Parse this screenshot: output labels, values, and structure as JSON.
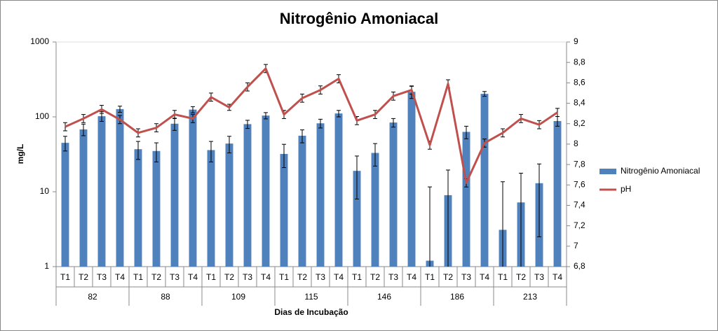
{
  "chart_data": {
    "type": "bar-line",
    "title": "Nitrogênio Amoniacal",
    "y_label": "mg/L",
    "x_label": "Dias de Incubação",
    "categories": [
      "T1",
      "T2",
      "T3",
      "T4",
      "T1",
      "T2",
      "T3",
      "T4",
      "T1",
      "T2",
      "T3",
      "T4",
      "T1",
      "T2",
      "T3",
      "T4",
      "T1",
      "T2",
      "T3",
      "T4",
      "T1",
      "T2",
      "T3",
      "T4",
      "T1",
      "T2",
      "T3",
      "T4"
    ],
    "groups": [
      "82",
      "88",
      "109",
      "115",
      "146",
      "186",
      "213"
    ],
    "log_scale": true,
    "ylim": [
      1,
      1000
    ],
    "yticks": [
      1,
      10,
      100,
      1000
    ],
    "y2lim": [
      6.8,
      9
    ],
    "y2ticks": [
      {
        "value": 6.8,
        "label": "6,8"
      },
      {
        "value": 7,
        "label": "7"
      },
      {
        "value": 7.2,
        "label": "7,2"
      },
      {
        "value": 7.4,
        "label": "7,4"
      },
      {
        "value": 7.6,
        "label": "7,6"
      },
      {
        "value": 7.8,
        "label": "7,8"
      },
      {
        "value": 8,
        "label": "8"
      },
      {
        "value": 8.2,
        "label": "8,2"
      },
      {
        "value": 8.4,
        "label": "8,4"
      },
      {
        "value": 8.6,
        "label": "8,6"
      },
      {
        "value": 8.8,
        "label": "8,8"
      },
      {
        "value": 9,
        "label": "9"
      }
    ],
    "grid": false,
    "legend": "right",
    "series": [
      {
        "name": "Nitrogênio Amoniacal",
        "type": "bar",
        "color": "#4f81bd",
        "values": [
          45,
          68,
          102,
          127,
          37,
          35,
          81,
          125,
          36,
          44,
          80,
          104,
          32,
          56,
          82,
          111,
          19,
          33,
          84,
          216,
          1.2,
          9,
          63,
          203,
          3.1,
          7.2,
          13,
          88
        ],
        "errors": [
          10,
          12,
          15,
          12,
          10,
          10,
          15,
          12,
          11,
          11,
          10,
          10,
          11,
          11,
          11,
          11,
          11,
          11,
          11,
          40,
          10.4,
          10.5,
          12,
          15,
          10.5,
          10.5,
          10.5,
          13
        ]
      },
      {
        "name": "pH",
        "type": "line",
        "axis": "y2",
        "color": "#c0504d",
        "values": [
          8.17,
          8.25,
          8.34,
          8.24,
          8.11,
          8.16,
          8.29,
          8.25,
          8.46,
          8.36,
          8.56,
          8.74,
          8.29,
          8.45,
          8.53,
          8.64,
          8.23,
          8.29,
          8.47,
          8.53,
          7.99,
          8.59,
          7.62,
          8.01,
          8.11,
          8.25,
          8.19,
          8.31
        ],
        "errors": [
          0.04,
          0.04,
          0.04,
          0.04,
          0.04,
          0.04,
          0.04,
          0.04,
          0.04,
          0.03,
          0.04,
          0.04,
          0.04,
          0.04,
          0.04,
          0.04,
          0.04,
          0.04,
          0.04,
          0.04,
          0.04,
          0.04,
          0.04,
          0.04,
          0.04,
          0.04,
          0.04,
          0.04
        ]
      }
    ]
  }
}
